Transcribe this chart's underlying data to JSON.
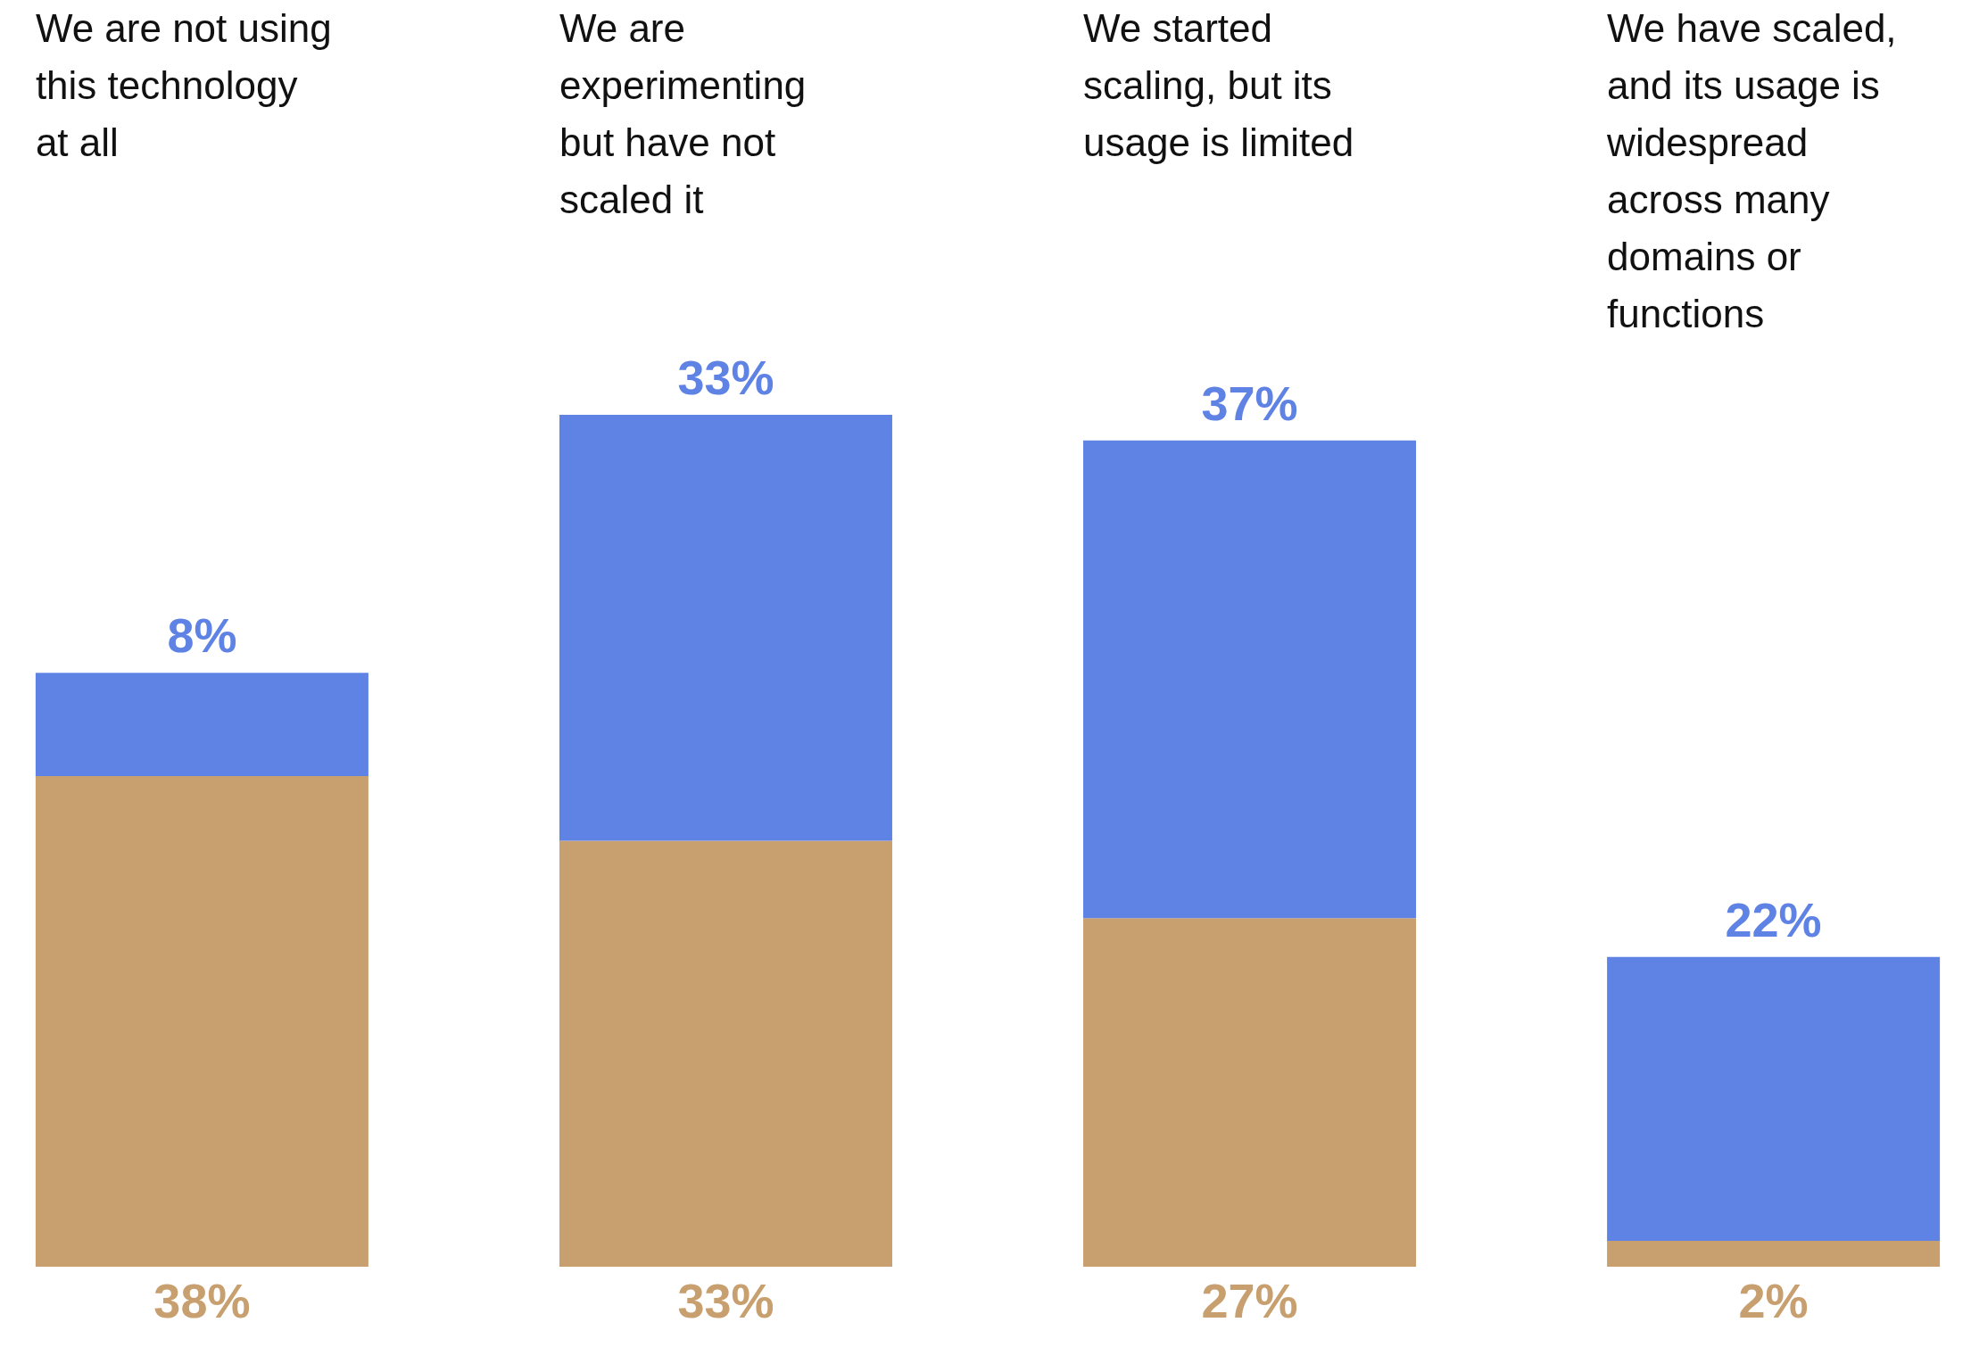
{
  "chart_data": {
    "type": "bar",
    "stacked": true,
    "categories": [
      "We are not using this technology at all",
      "We are experimenting but have not scaled it",
      "We started scaling, but its usage is limited",
      "We have scaled, and its usage is widespread across many domains or functions"
    ],
    "series": [
      {
        "color": "#c89f6f",
        "values": [
          38,
          33,
          27,
          2
        ],
        "value_labels": [
          "38%",
          "33%",
          "27%",
          "2%"
        ]
      },
      {
        "color": "#5f82e5",
        "values": [
          8,
          33,
          37,
          22
        ],
        "value_labels": [
          "8%",
          "33%",
          "37%",
          "22%"
        ]
      }
    ],
    "legend": false
  }
}
